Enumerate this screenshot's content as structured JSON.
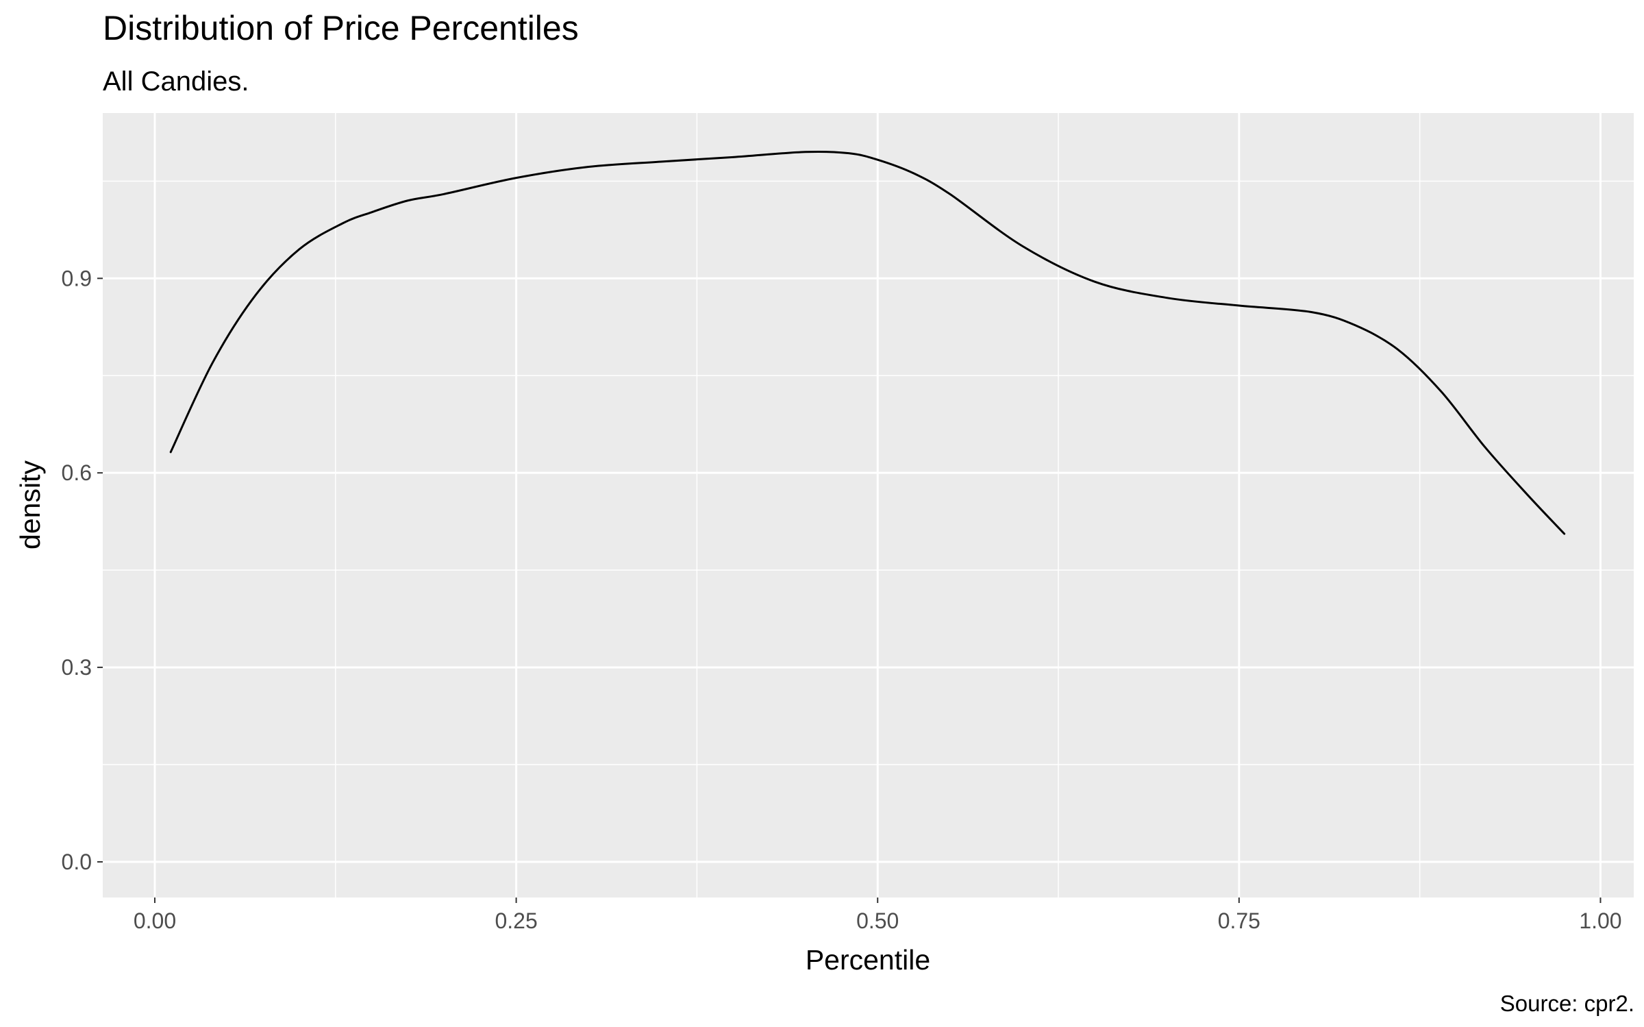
{
  "chart_data": {
    "type": "line",
    "title": "Distribution of Price Percentiles",
    "subtitle": "All Candies.",
    "caption": "Source: cpr2.",
    "xlabel": "Percentile",
    "ylabel": "density",
    "xlim": [
      -0.036,
      1.023
    ],
    "ylim": [
      -0.055,
      1.155
    ],
    "x_ticks": [
      0.0,
      0.25,
      0.5,
      0.75,
      1.0
    ],
    "x_tick_labels": [
      "0.00",
      "0.25",
      "0.50",
      "0.75",
      "1.00"
    ],
    "y_ticks": [
      0.0,
      0.3,
      0.6,
      0.9
    ],
    "y_tick_labels": [
      "0.0",
      "0.3",
      "0.6",
      "0.9"
    ],
    "grid": true,
    "panel_background": "#EBEBEB",
    "grid_color": "#FFFFFF",
    "line_color": "#000000",
    "series": [
      {
        "x": [
          0.011,
          0.04,
          0.07,
          0.1,
          0.13,
          0.15,
          0.175,
          0.2,
          0.25,
          0.3,
          0.35,
          0.4,
          0.45,
          0.48,
          0.5,
          0.525,
          0.55,
          0.6,
          0.65,
          0.7,
          0.75,
          0.8,
          0.83,
          0.86,
          0.89,
          0.92,
          0.95,
          0.975
        ],
        "y": [
          0.632,
          0.77,
          0.875,
          0.945,
          0.985,
          1.002,
          1.02,
          1.03,
          1.055,
          1.072,
          1.08,
          1.087,
          1.095,
          1.093,
          1.083,
          1.062,
          1.03,
          0.95,
          0.895,
          0.87,
          0.858,
          0.848,
          0.828,
          0.79,
          0.725,
          0.64,
          0.565,
          0.506
        ]
      }
    ]
  }
}
